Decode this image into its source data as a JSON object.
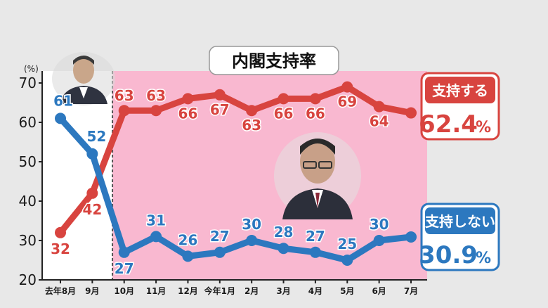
{
  "chart_data": {
    "type": "line",
    "title": "内閣支持率",
    "unit_label": "(%)",
    "ylim": [
      20,
      70
    ],
    "yticks": [
      20,
      30,
      40,
      50,
      60,
      70
    ],
    "categories": [
      "去年8月",
      "9月",
      "10月",
      "11月",
      "12月",
      "今年1月",
      "2月",
      "3月",
      "4月",
      "5月",
      "6月",
      "7月"
    ],
    "series": [
      {
        "name": "支持する",
        "color": "#d8443f",
        "values": [
          32,
          42,
          63,
          63,
          66,
          67,
          63,
          66,
          66,
          69,
          64,
          62.4
        ],
        "labels": [
          "32",
          "42",
          "63",
          "63",
          "66",
          "67",
          "63",
          "66",
          "66",
          "69",
          "64",
          ""
        ],
        "latest": "62.4",
        "latest_unit": "%"
      },
      {
        "name": "支持しない",
        "color": "#2c78bf",
        "values": [
          61,
          52,
          27,
          31,
          26,
          27,
          30,
          28,
          27,
          25,
          30,
          30.9
        ],
        "labels": [
          "61",
          "52",
          "27",
          "31",
          "26",
          "27",
          "30",
          "28",
          "27",
          "25",
          "30",
          ""
        ],
        "latest": "30.9",
        "latest_unit": "%"
      }
    ],
    "shaded_region_from_category": "10月",
    "shaded_color": "#f9b8d0",
    "grid": false
  }
}
